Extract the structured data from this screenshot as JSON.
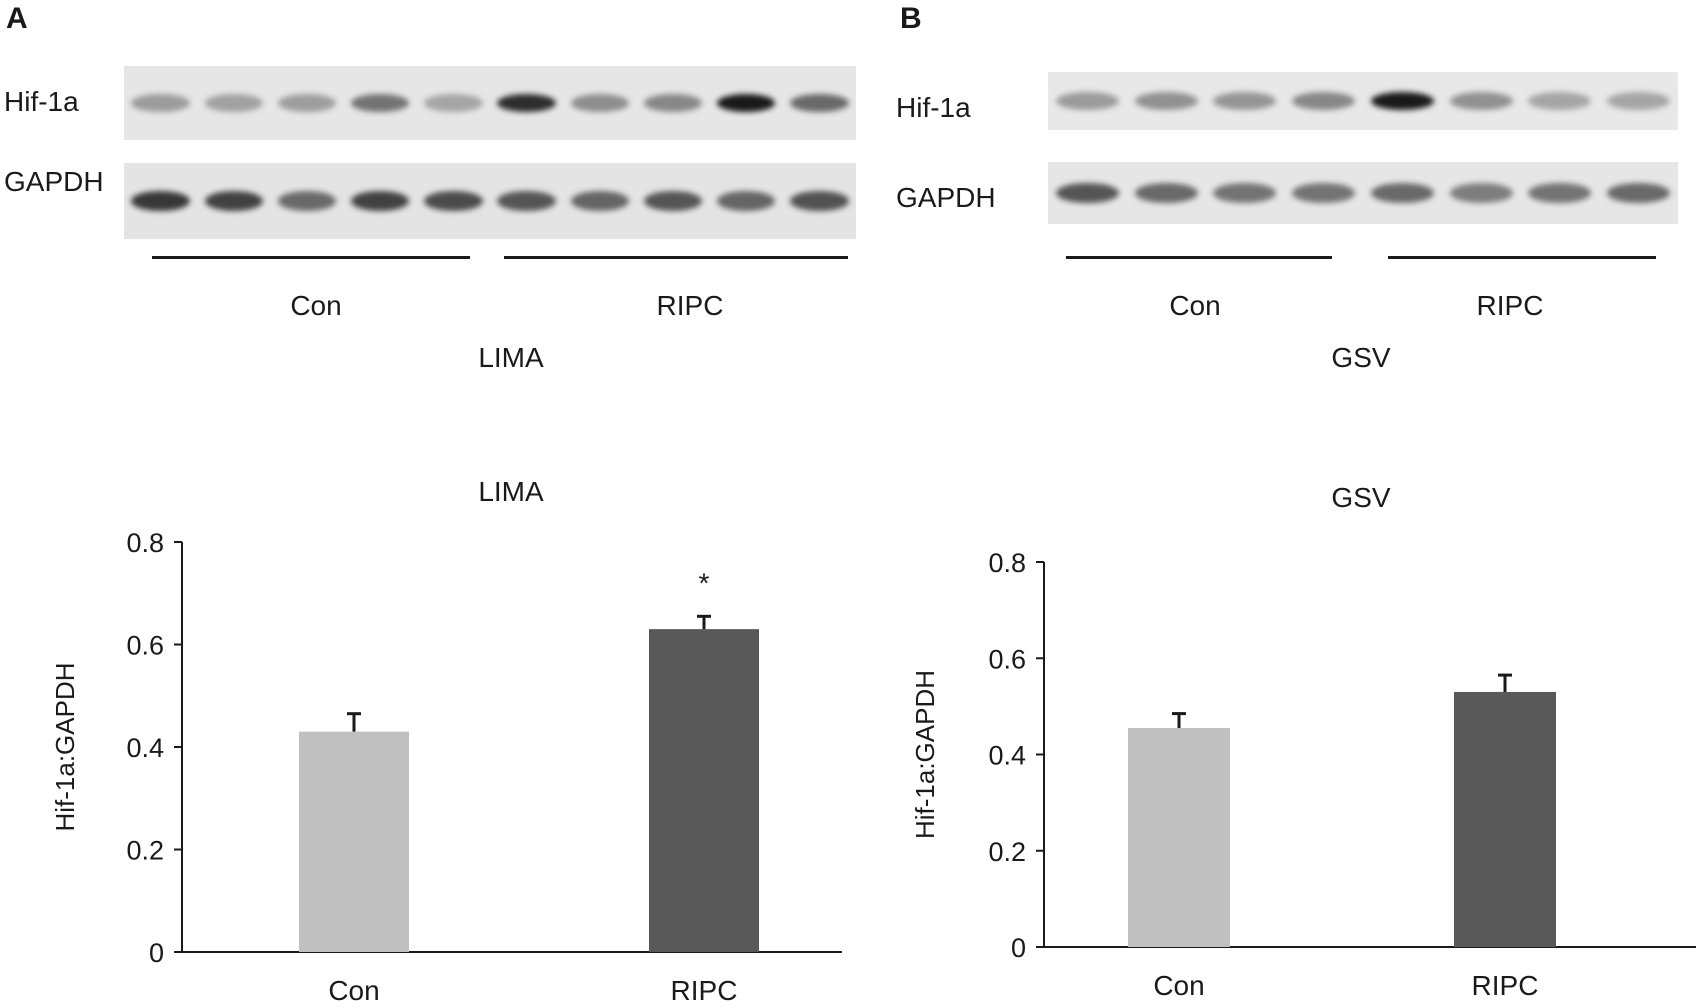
{
  "panels": [
    {
      "letter": "A",
      "blot": {
        "rows": [
          "Hif-1a",
          "GAPDH"
        ],
        "groups": [
          "Con",
          "RIPC"
        ],
        "tissue": "LIMA",
        "lanes": 10,
        "hif_intensity": [
          0.35,
          0.32,
          0.34,
          0.55,
          0.3,
          0.9,
          0.42,
          0.45,
          1.0,
          0.6
        ],
        "gapdh_intensity": [
          0.85,
          0.8,
          0.6,
          0.8,
          0.75,
          0.7,
          0.62,
          0.7,
          0.62,
          0.72
        ]
      },
      "chart_title": "LIMA"
    },
    {
      "letter": "B",
      "blot": {
        "rows": [
          "Hif-1a",
          "GAPDH"
        ],
        "groups": [
          "Con",
          "RIPC"
        ],
        "tissue": "GSV",
        "lanes": 8,
        "hif_intensity": [
          0.35,
          0.4,
          0.38,
          0.45,
          1.0,
          0.4,
          0.3,
          0.3
        ],
        "gapdh_intensity": [
          0.7,
          0.6,
          0.55,
          0.55,
          0.6,
          0.5,
          0.55,
          0.6
        ]
      },
      "chart_title": "GSV"
    }
  ],
  "chart_data": [
    {
      "type": "bar",
      "title": "LIMA",
      "categories": [
        "Con",
        "RIPC"
      ],
      "values": [
        0.43,
        0.63
      ],
      "errors": [
        0.035,
        0.025
      ],
      "bar_colors": [
        "#c0c0c0",
        "#595959"
      ],
      "annotations": [
        "",
        "*"
      ],
      "ylabel": "Hif-1a:GAPDH",
      "xlabel": "",
      "ylim": [
        0,
        0.8
      ],
      "yticks": [
        "0",
        "0.2",
        "0.4",
        "0.6",
        "0.8"
      ],
      "grid": false
    },
    {
      "type": "bar",
      "title": "GSV",
      "categories": [
        "Con",
        "RIPC"
      ],
      "values": [
        0.455,
        0.53
      ],
      "errors": [
        0.03,
        0.035
      ],
      "bar_colors": [
        "#c0c0c0",
        "#595959"
      ],
      "annotations": [
        "",
        ""
      ],
      "ylabel": "Hif-1a:GAPDH",
      "xlabel": "",
      "ylim": [
        0,
        0.8
      ],
      "yticks": [
        "0",
        "0.2",
        "0.4",
        "0.6",
        "0.8"
      ],
      "grid": false
    }
  ]
}
